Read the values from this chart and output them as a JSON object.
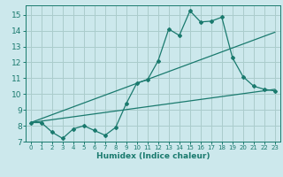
{
  "title": "",
  "xlabel": "Humidex (Indice chaleur)",
  "background_color": "#cce8ec",
  "grid_color": "#aacccc",
  "line_color": "#1a7a6e",
  "xlim": [
    -0.5,
    23.5
  ],
  "ylim": [
    7,
    15.6
  ],
  "xticks": [
    0,
    1,
    2,
    3,
    4,
    5,
    6,
    7,
    8,
    9,
    10,
    11,
    12,
    13,
    14,
    15,
    16,
    17,
    18,
    19,
    20,
    21,
    22,
    23
  ],
  "yticks": [
    7,
    8,
    9,
    10,
    11,
    12,
    13,
    14,
    15
  ],
  "line1_x": [
    0,
    1,
    2,
    3,
    4,
    5,
    6,
    7,
    8,
    9,
    10,
    11,
    12,
    13,
    14,
    15,
    16,
    17,
    18,
    19,
    20,
    21,
    22,
    23
  ],
  "line1_y": [
    8.2,
    8.2,
    7.6,
    7.2,
    7.8,
    8.0,
    7.7,
    7.4,
    7.9,
    9.4,
    10.7,
    10.9,
    12.1,
    14.1,
    13.7,
    15.25,
    14.55,
    14.6,
    14.85,
    12.3,
    11.1,
    10.5,
    10.3,
    10.2
  ],
  "line2_x": [
    0,
    23
  ],
  "line2_y": [
    8.2,
    10.3
  ],
  "line3_x": [
    0,
    23
  ],
  "line3_y": [
    8.2,
    13.9
  ]
}
